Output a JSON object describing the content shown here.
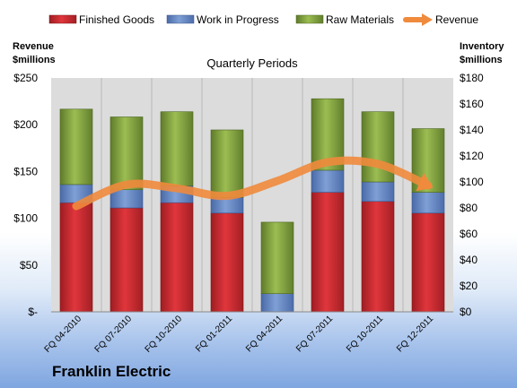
{
  "brand": "Franklin Electric",
  "chart_data": {
    "type": "bar",
    "stacked": true,
    "title": "Quarterly Periods",
    "ylabel_left": [
      "Revenue",
      "$millions"
    ],
    "ylabel_right": [
      "Inventory",
      "$millions"
    ],
    "categories": [
      "FQ 04-2010",
      "FQ 07-2010",
      "FQ 10-2010",
      "FQ 01-2011",
      "FQ 04-2011",
      "FQ 07-2011",
      "FQ 10-2011",
      "FQ 12-2011"
    ],
    "left_axis": {
      "min": 0,
      "max": 250,
      "step": 50,
      "ticks": [
        "$-",
        "$50",
        "$100",
        "$150",
        "$200",
        "$250"
      ]
    },
    "right_axis": {
      "min": 0,
      "max": 180,
      "step": 20,
      "ticks": [
        "$0",
        "$20",
        "$40",
        "$60",
        "$80",
        "$100",
        "$120",
        "$140",
        "$160",
        "$180"
      ]
    },
    "legend_position": "top",
    "grid": "vertical",
    "series": [
      {
        "name": "Finished Goods",
        "axis": "right",
        "color": "#c0272d",
        "values": [
          84,
          80,
          84,
          76,
          0,
          92,
          85,
          76
        ]
      },
      {
        "name": "Work in Progress",
        "axis": "right",
        "color": "#5b7fbf",
        "values": [
          14,
          14,
          13,
          12,
          14,
          17,
          15,
          16
        ]
      },
      {
        "name": "Raw Materials",
        "axis": "right",
        "color": "#7a9a3a",
        "values": [
          58,
          56,
          57,
          52,
          55,
          55,
          54,
          49
        ]
      },
      {
        "name": "Revenue",
        "axis": "left",
        "type": "line",
        "color": "#f08a3c",
        "values": [
          113,
          136,
          132,
          124,
          140,
          160,
          158,
          135
        ]
      }
    ]
  }
}
